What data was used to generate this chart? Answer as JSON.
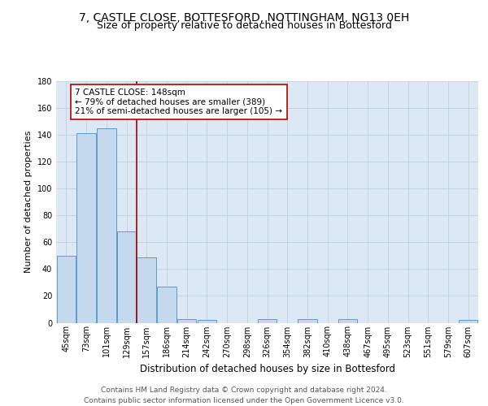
{
  "title": "7, CASTLE CLOSE, BOTTESFORD, NOTTINGHAM, NG13 0EH",
  "subtitle": "Size of property relative to detached houses in Bottesford",
  "xlabel": "Distribution of detached houses by size in Bottesford",
  "ylabel": "Number of detached properties",
  "bar_labels": [
    "45sqm",
    "73sqm",
    "101sqm",
    "129sqm",
    "157sqm",
    "186sqm",
    "214sqm",
    "242sqm",
    "270sqm",
    "298sqm",
    "326sqm",
    "354sqm",
    "382sqm",
    "410sqm",
    "438sqm",
    "467sqm",
    "495sqm",
    "523sqm",
    "551sqm",
    "579sqm",
    "607sqm"
  ],
  "bar_values": [
    50,
    141,
    145,
    68,
    49,
    27,
    3,
    2,
    0,
    0,
    3,
    0,
    3,
    0,
    3,
    0,
    0,
    0,
    0,
    0,
    2
  ],
  "bar_color": "#c5d9ed",
  "bar_edge_color": "#5b9dc9",
  "property_line_index": 3.5,
  "annotation_text": "7 CASTLE CLOSE: 148sqm\n← 79% of detached houses are smaller (389)\n21% of semi-detached houses are larger (105) →",
  "annotation_box_color": "#ffffff",
  "annotation_box_edge_color": "#bb0000",
  "annotation_text_color": "#000000",
  "red_line_color": "#aa0000",
  "ylim": [
    0,
    180
  ],
  "yticks": [
    0,
    20,
    40,
    60,
    80,
    100,
    120,
    140,
    160,
    180
  ],
  "grid_color": "#c0cfe0",
  "background_color": "#dce8f4",
  "footer_text": "Contains HM Land Registry data © Crown copyright and database right 2024.\nContains public sector information licensed under the Open Government Licence v3.0.",
  "title_fontsize": 10,
  "subtitle_fontsize": 9,
  "xlabel_fontsize": 8.5,
  "ylabel_fontsize": 8,
  "tick_fontsize": 7,
  "annotation_fontsize": 7.5,
  "footer_fontsize": 6.5
}
